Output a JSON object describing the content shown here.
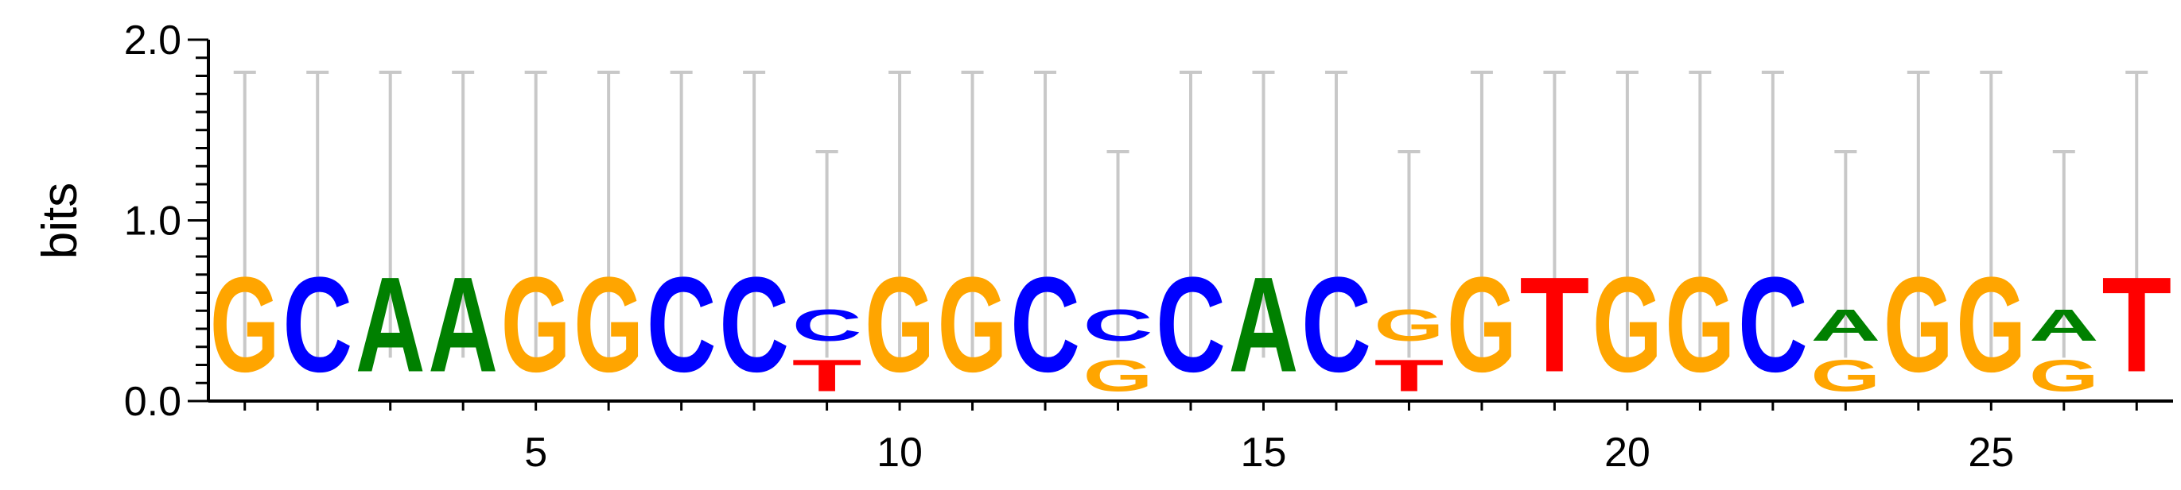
{
  "chart_data": {
    "type": "sequence-logo",
    "ylabel": "bits",
    "ylim": [
      0,
      2
    ],
    "yticks": [
      {
        "value": 0,
        "label": "0.0"
      },
      {
        "value": 1,
        "label": "1.0"
      },
      {
        "value": 2,
        "label": "2.0"
      }
    ],
    "xlim": [
      0.5,
      27.5
    ],
    "xticks": [
      {
        "value": 5,
        "label": "5"
      },
      {
        "value": 10,
        "label": "10"
      },
      {
        "value": 15,
        "label": "15"
      },
      {
        "value": 20,
        "label": "20"
      },
      {
        "value": 25,
        "label": "25"
      }
    ],
    "colors": {
      "A": "#008000",
      "C": "#0000FF",
      "G": "#FFA500",
      "T": "#FF0000",
      "errorbar": "#C8C8C8"
    },
    "positions": [
      {
        "pos": 1,
        "letters": [
          {
            "b": "G",
            "h": 0.84
          }
        ],
        "err": [
          0.24,
          1.82
        ]
      },
      {
        "pos": 2,
        "letters": [
          {
            "b": "C",
            "h": 0.84
          }
        ],
        "err": [
          0.24,
          1.82
        ]
      },
      {
        "pos": 3,
        "letters": [
          {
            "b": "A",
            "h": 0.84
          }
        ],
        "err": [
          0.24,
          1.82
        ]
      },
      {
        "pos": 4,
        "letters": [
          {
            "b": "A",
            "h": 0.84
          }
        ],
        "err": [
          0.24,
          1.82
        ]
      },
      {
        "pos": 5,
        "letters": [
          {
            "b": "G",
            "h": 0.84
          }
        ],
        "err": [
          0.24,
          1.82
        ]
      },
      {
        "pos": 6,
        "letters": [
          {
            "b": "G",
            "h": 0.84
          }
        ],
        "err": [
          0.24,
          1.82
        ]
      },
      {
        "pos": 7,
        "letters": [
          {
            "b": "C",
            "h": 0.84
          }
        ],
        "err": [
          0.24,
          1.82
        ]
      },
      {
        "pos": 8,
        "letters": [
          {
            "b": "C",
            "h": 0.84
          }
        ],
        "err": [
          0.24,
          1.82
        ]
      },
      {
        "pos": 9,
        "letters": [
          {
            "b": "T",
            "h": 0.28
          },
          {
            "b": "C",
            "h": 0.28
          }
        ],
        "err": [
          0.24,
          1.38
        ]
      },
      {
        "pos": 10,
        "letters": [
          {
            "b": "G",
            "h": 0.84
          }
        ],
        "err": [
          0.24,
          1.82
        ]
      },
      {
        "pos": 11,
        "letters": [
          {
            "b": "G",
            "h": 0.84
          }
        ],
        "err": [
          0.24,
          1.82
        ]
      },
      {
        "pos": 12,
        "letters": [
          {
            "b": "C",
            "h": 0.84
          }
        ],
        "err": [
          0.24,
          1.82
        ]
      },
      {
        "pos": 13,
        "letters": [
          {
            "b": "G",
            "h": 0.28
          },
          {
            "b": "C",
            "h": 0.28
          }
        ],
        "err": [
          0.24,
          1.38
        ]
      },
      {
        "pos": 14,
        "letters": [
          {
            "b": "C",
            "h": 0.84
          }
        ],
        "err": [
          0.24,
          1.82
        ]
      },
      {
        "pos": 15,
        "letters": [
          {
            "b": "A",
            "h": 0.84
          }
        ],
        "err": [
          0.24,
          1.82
        ]
      },
      {
        "pos": 16,
        "letters": [
          {
            "b": "C",
            "h": 0.84
          }
        ],
        "err": [
          0.24,
          1.82
        ]
      },
      {
        "pos": 17,
        "letters": [
          {
            "b": "T",
            "h": 0.28
          },
          {
            "b": "G",
            "h": 0.28
          }
        ],
        "err": [
          0.24,
          1.38
        ]
      },
      {
        "pos": 18,
        "letters": [
          {
            "b": "G",
            "h": 0.84
          }
        ],
        "err": [
          0.24,
          1.82
        ]
      },
      {
        "pos": 19,
        "letters": [
          {
            "b": "T",
            "h": 0.84
          }
        ],
        "err": [
          0.24,
          1.82
        ]
      },
      {
        "pos": 20,
        "letters": [
          {
            "b": "G",
            "h": 0.84
          }
        ],
        "err": [
          0.24,
          1.82
        ]
      },
      {
        "pos": 21,
        "letters": [
          {
            "b": "G",
            "h": 0.84
          }
        ],
        "err": [
          0.24,
          1.82
        ]
      },
      {
        "pos": 22,
        "letters": [
          {
            "b": "C",
            "h": 0.84
          }
        ],
        "err": [
          0.24,
          1.82
        ]
      },
      {
        "pos": 23,
        "letters": [
          {
            "b": "G",
            "h": 0.28
          },
          {
            "b": "A",
            "h": 0.28
          }
        ],
        "err": [
          0.24,
          1.38
        ]
      },
      {
        "pos": 24,
        "letters": [
          {
            "b": "G",
            "h": 0.84
          }
        ],
        "err": [
          0.24,
          1.82
        ]
      },
      {
        "pos": 25,
        "letters": [
          {
            "b": "G",
            "h": 0.84
          }
        ],
        "err": [
          0.24,
          1.82
        ]
      },
      {
        "pos": 26,
        "letters": [
          {
            "b": "G",
            "h": 0.28
          },
          {
            "b": "A",
            "h": 0.28
          }
        ],
        "err": [
          0.24,
          1.38
        ]
      },
      {
        "pos": 27,
        "letters": [
          {
            "b": "T",
            "h": 0.84
          }
        ],
        "err": [
          0.24,
          1.82
        ]
      }
    ]
  }
}
